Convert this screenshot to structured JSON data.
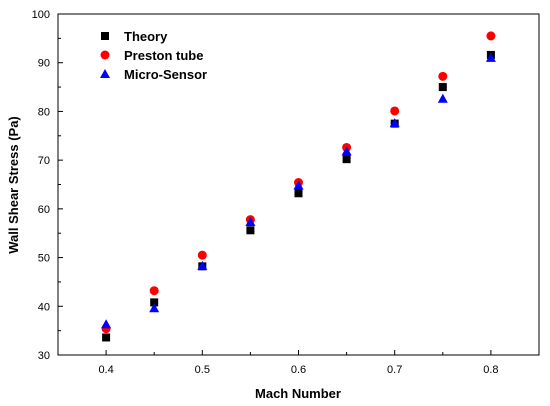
{
  "chart_data": {
    "type": "scatter",
    "title": "",
    "xlabel": "Mach Number",
    "ylabel": "Wall Shear Stress (Pa)",
    "xlim": [
      0.35,
      0.85
    ],
    "ylim": [
      30,
      100
    ],
    "x_ticks": [
      "0.4",
      "0.5",
      "0.6",
      "0.7",
      "0.8"
    ],
    "y_ticks": [
      "30",
      "40",
      "50",
      "60",
      "70",
      "80",
      "90",
      "100"
    ],
    "grid": false,
    "legend_position": "top-left",
    "series": [
      {
        "name": "Theory",
        "marker": "square",
        "color": "#000000",
        "x": [
          0.4,
          0.45,
          0.5,
          0.55,
          0.6,
          0.65,
          0.7,
          0.75,
          0.8
        ],
        "y": [
          33.6,
          40.8,
          48.2,
          55.6,
          63.2,
          70.2,
          77.5,
          85.0,
          91.6
        ]
      },
      {
        "name": "Preston tube",
        "marker": "circle",
        "color": "#ff0000",
        "x": [
          0.4,
          0.45,
          0.5,
          0.55,
          0.6,
          0.65,
          0.7,
          0.75,
          0.8
        ],
        "y": [
          35.4,
          43.2,
          50.5,
          57.8,
          65.4,
          72.6,
          80.1,
          87.2,
          95.5
        ]
      },
      {
        "name": "Micro-Sensor",
        "marker": "triangle",
        "color": "#0000ff",
        "x": [
          0.4,
          0.45,
          0.5,
          0.55,
          0.6,
          0.65,
          0.7,
          0.75,
          0.8
        ],
        "y": [
          36.3,
          39.6,
          48.3,
          57.3,
          64.8,
          71.8,
          77.6,
          82.6,
          91.0
        ]
      }
    ]
  }
}
